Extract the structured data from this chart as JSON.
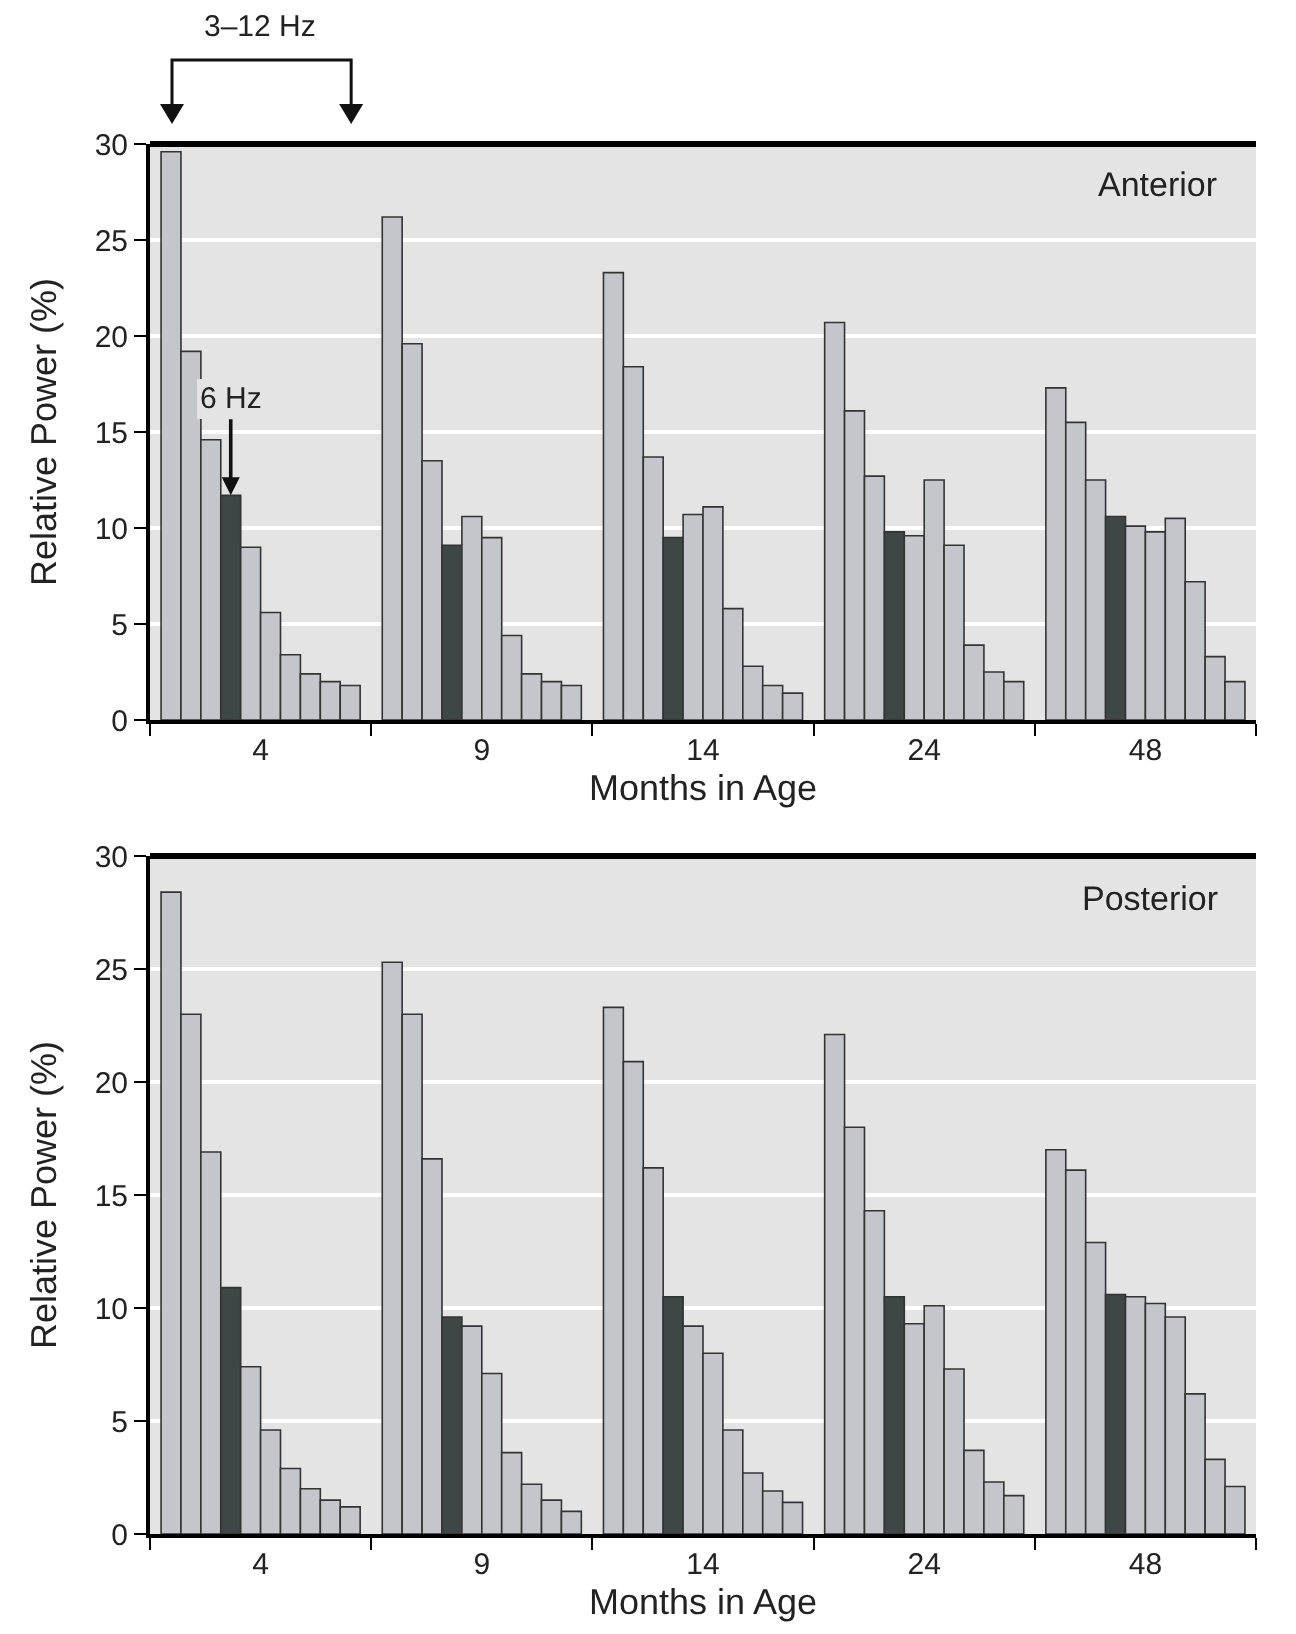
{
  "chart_data": [
    {
      "type": "bar",
      "title": "Anterior",
      "xlabel": "Months in Age",
      "ylabel": "Relative Power (%)",
      "categories": [
        "4",
        "9",
        "14",
        "24",
        "48"
      ],
      "series": [
        {
          "color": "#c4c6cc",
          "values": [
            29.6,
            26.2,
            23.3,
            20.7,
            17.3
          ]
        },
        {
          "color": "#c4c6cc",
          "values": [
            19.2,
            19.6,
            18.4,
            16.1,
            15.5
          ]
        },
        {
          "color": "#c4c6cc",
          "values": [
            14.6,
            13.5,
            13.7,
            12.7,
            12.5
          ]
        },
        {
          "color": "#3f4646",
          "values": [
            11.7,
            9.1,
            9.5,
            9.8,
            10.6
          ]
        },
        {
          "color": "#c4c6cc",
          "values": [
            9.0,
            10.6,
            10.7,
            9.6,
            10.1
          ]
        },
        {
          "color": "#c4c6cc",
          "values": [
            5.6,
            9.5,
            11.1,
            12.5,
            9.8
          ]
        },
        {
          "color": "#c4c6cc",
          "values": [
            3.4,
            4.4,
            5.8,
            9.1,
            10.5
          ]
        },
        {
          "color": "#c4c6cc",
          "values": [
            2.4,
            2.4,
            2.8,
            3.9,
            7.2
          ]
        },
        {
          "color": "#c4c6cc",
          "values": [
            2.0,
            2.0,
            1.8,
            2.5,
            3.3
          ]
        },
        {
          "color": "#c4c6cc",
          "values": [
            1.8,
            1.8,
            1.4,
            2.0,
            2.0
          ]
        }
      ],
      "ylim": [
        0,
        30
      ],
      "yticks": [
        0,
        5,
        10,
        15,
        20,
        25,
        30
      ],
      "grid": "y",
      "annotations": [
        "3–12 Hz",
        {
          "text": "6 Hz",
          "y": 11.7
        }
      ]
    },
    {
      "type": "bar",
      "title": "Posterior",
      "xlabel": "Months in Age",
      "ylabel": "Relative Power (%)",
      "categories": [
        "4",
        "9",
        "14",
        "24",
        "48"
      ],
      "series": [
        {
          "color": "#c4c6cc",
          "values": [
            28.4,
            25.3,
            23.3,
            22.1,
            17.0
          ]
        },
        {
          "color": "#c4c6cc",
          "values": [
            23.0,
            23.0,
            20.9,
            18.0,
            16.1
          ]
        },
        {
          "color": "#c4c6cc",
          "values": [
            16.9,
            16.6,
            16.2,
            14.3,
            12.9
          ]
        },
        {
          "color": "#3f4646",
          "values": [
            10.9,
            9.6,
            10.5,
            10.5,
            10.6
          ]
        },
        {
          "color": "#c4c6cc",
          "values": [
            7.4,
            9.2,
            9.2,
            9.3,
            10.5
          ]
        },
        {
          "color": "#c4c6cc",
          "values": [
            4.6,
            7.1,
            8.0,
            10.1,
            10.2
          ]
        },
        {
          "color": "#c4c6cc",
          "values": [
            2.9,
            3.6,
            4.6,
            7.3,
            9.6
          ]
        },
        {
          "color": "#c4c6cc",
          "values": [
            2.0,
            2.2,
            2.7,
            3.7,
            6.2
          ]
        },
        {
          "color": "#c4c6cc",
          "values": [
            1.5,
            1.5,
            1.9,
            2.3,
            3.3
          ]
        },
        {
          "color": "#c4c6cc",
          "values": [
            1.2,
            1.0,
            1.4,
            1.7,
            2.1
          ]
        }
      ],
      "ylim": [
        0,
        30
      ],
      "yticks": [
        0,
        5,
        10,
        15,
        20,
        25,
        30
      ],
      "grid": "y"
    }
  ]
}
